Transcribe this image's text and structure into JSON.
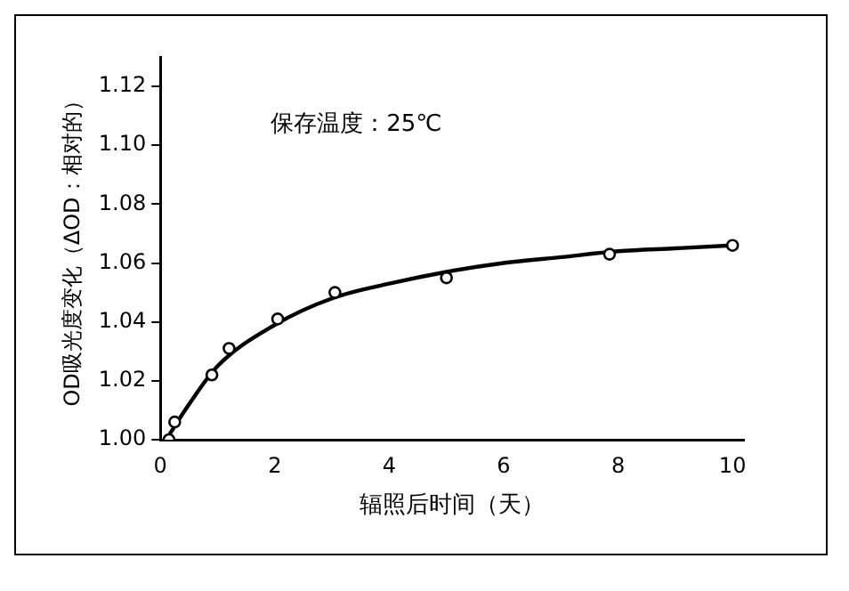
{
  "chart_data": {
    "type": "scatter",
    "xlabel": "辐照后时间（天）",
    "ylabel": "OD吸光度变化（ΔOD：相对的）",
    "annotations": [
      "保存温度：25℃"
    ],
    "xlim": [
      0,
      10.2
    ],
    "xticks": [
      0,
      2,
      4,
      6,
      8,
      10
    ],
    "ylim": [
      1.0,
      1.13
    ],
    "yticks": [
      {
        "value": 1.0,
        "label": "1.00"
      },
      {
        "value": 1.02,
        "label": "1.02"
      },
      {
        "value": 1.04,
        "label": "1.04"
      },
      {
        "value": 1.06,
        "label": "1.06"
      },
      {
        "value": 1.08,
        "label": "1.08"
      },
      {
        "value": 1.1,
        "label": "1.10"
      },
      {
        "value": 1.12,
        "label": "1.12"
      }
    ],
    "grid": false,
    "legend": false,
    "series": [
      {
        "marker": "circle",
        "color": "#000000",
        "x": [
          0.15,
          0.25,
          0.9,
          1.2,
          2.05,
          3.05,
          5.0,
          7.85,
          10.0
        ],
        "values": [
          1.0,
          1.006,
          1.022,
          1.031,
          1.041,
          1.05,
          1.055,
          1.063,
          1.066
        ]
      },
      {
        "type": "line",
        "marker": "none",
        "line_style": "solid",
        "color": "#000000",
        "x": [
          0.1,
          0.5,
          1,
          2,
          3,
          4,
          5,
          6,
          7,
          8,
          9,
          10
        ],
        "values": [
          1.0,
          1.012,
          1.025,
          1.039,
          1.048,
          1.053,
          1.057,
          1.06,
          1.062,
          1.064,
          1.065,
          1.066
        ]
      }
    ]
  }
}
